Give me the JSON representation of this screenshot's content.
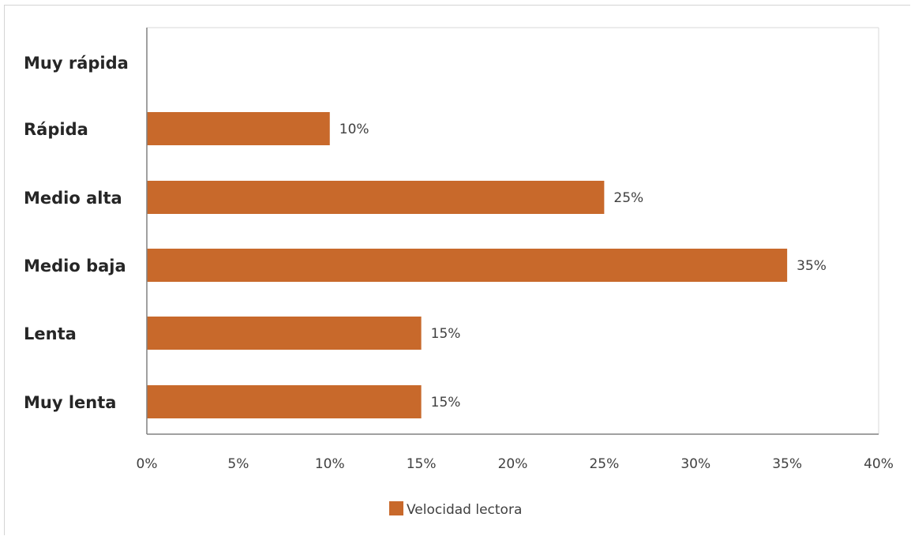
{
  "chart_data": {
    "type": "bar",
    "orientation": "horizontal",
    "categories": [
      "Muy rápida",
      "Rápida",
      "Medio alta",
      "Medio baja",
      "Lenta",
      "Muy lenta"
    ],
    "series": [
      {
        "name": "Velocidad lectora",
        "values": [
          0,
          10,
          25,
          35,
          15,
          15
        ],
        "value_labels": [
          "",
          "10%",
          "25%",
          "35%",
          "15%",
          "15%"
        ],
        "color": "#c8692b"
      }
    ],
    "x_ticks": [
      "0%",
      "5%",
      "10%",
      "15%",
      "20%",
      "25%",
      "30%",
      "35%",
      "40%"
    ],
    "xlim": [
      0,
      40
    ],
    "grid": false,
    "legend_position": "bottom"
  }
}
